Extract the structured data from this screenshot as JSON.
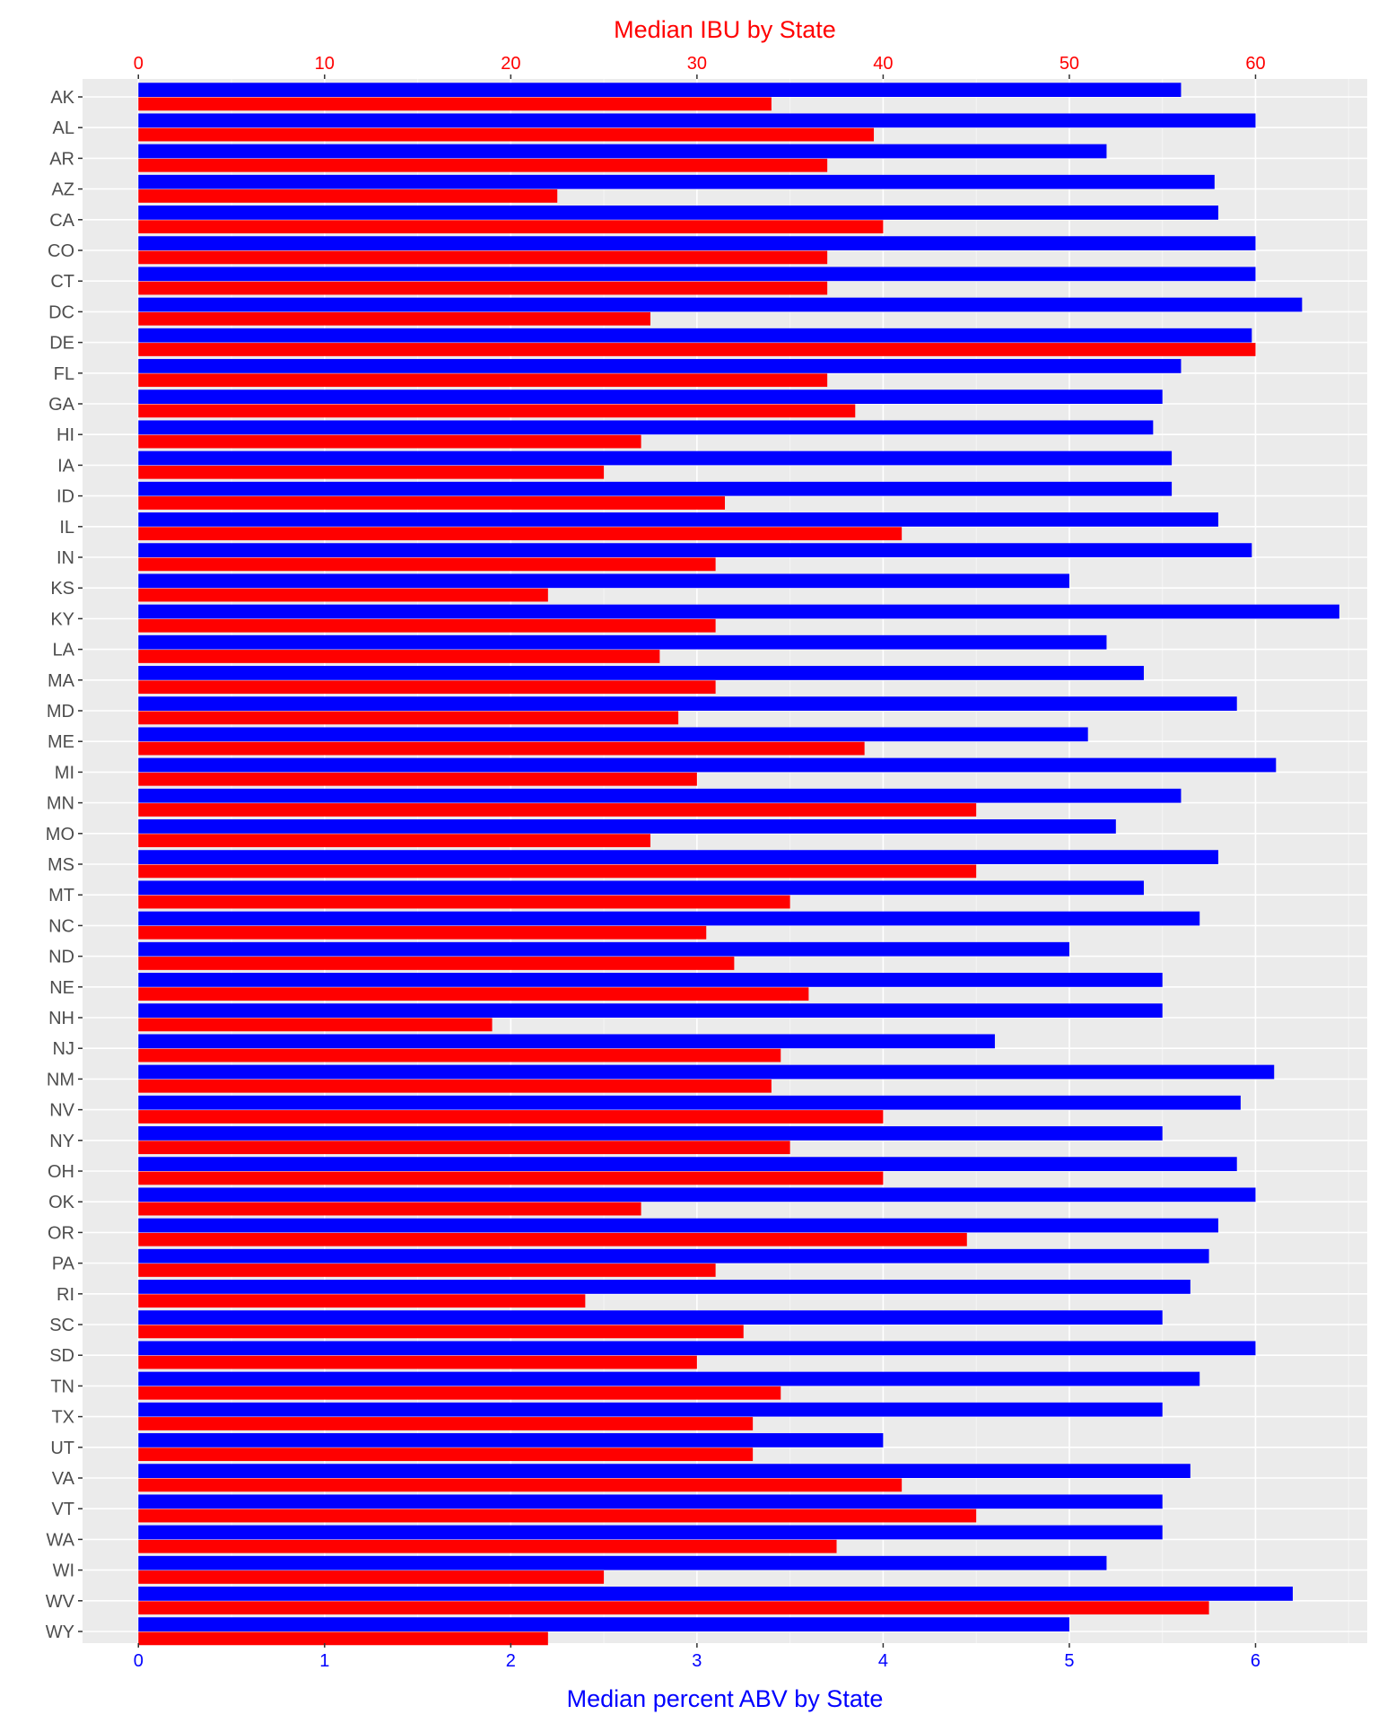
{
  "colors": {
    "abv": "#0000ff",
    "ibu": "#ff0000",
    "panel": "#ebebeb",
    "grid_major": "#ffffff",
    "grid_minor": "#f5f5f5",
    "axis_text": "#4d4d4d",
    "tick": "#333333"
  },
  "chart_data": {
    "type": "bar",
    "orientation": "horizontal",
    "grid": true,
    "legend": "none",
    "title": "Median IBU by State",
    "xlabel": "Median percent ABV by State",
    "categories": [
      "AK",
      "AL",
      "AR",
      "AZ",
      "CA",
      "CO",
      "CT",
      "DC",
      "DE",
      "FL",
      "GA",
      "HI",
      "IA",
      "ID",
      "IL",
      "IN",
      "KS",
      "KY",
      "LA",
      "MA",
      "MD",
      "ME",
      "MI",
      "MN",
      "MO",
      "MS",
      "MT",
      "NC",
      "ND",
      "NE",
      "NH",
      "NJ",
      "NM",
      "NV",
      "NY",
      "OH",
      "OK",
      "OR",
      "PA",
      "RI",
      "SC",
      "SD",
      "TN",
      "TX",
      "UT",
      "VA",
      "VT",
      "WA",
      "WI",
      "WV",
      "WY"
    ],
    "x_bottom": {
      "label": "Median percent ABV by State",
      "ticks": [
        "0",
        "1",
        "2",
        "3",
        "4",
        "5",
        "6"
      ],
      "range": [
        -0.3,
        6.6
      ]
    },
    "x_top": {
      "label": "Median IBU by State",
      "ticks": [
        "0",
        "10",
        "20",
        "30",
        "40",
        "50",
        "60"
      ],
      "range": [
        -3.0,
        66.0
      ]
    },
    "series": [
      {
        "axis": "bottom",
        "color": "#0000ff",
        "values": [
          5.6,
          6.0,
          5.2,
          5.78,
          5.8,
          6.0,
          6.0,
          6.25,
          5.98,
          5.6,
          5.5,
          5.45,
          5.55,
          5.55,
          5.8,
          5.98,
          5.0,
          6.45,
          5.2,
          5.4,
          5.9,
          5.1,
          6.11,
          5.6,
          5.25,
          5.8,
          5.4,
          5.7,
          5.0,
          5.5,
          5.5,
          4.6,
          6.1,
          5.92,
          5.5,
          5.9,
          6.0,
          5.8,
          5.75,
          5.65,
          5.5,
          6.0,
          5.7,
          5.5,
          4.0,
          5.65,
          5.5,
          5.5,
          5.2,
          6.2,
          5.0
        ]
      },
      {
        "axis": "top",
        "color": "#ff0000",
        "values": [
          34,
          39.5,
          37,
          22.5,
          40,
          37,
          37,
          27.5,
          60,
          37,
          38.5,
          27,
          25,
          31.5,
          41,
          31,
          22,
          31,
          28,
          31,
          29,
          39,
          30,
          45,
          27.5,
          45,
          35,
          30.5,
          32,
          36,
          19,
          34.5,
          34,
          40,
          35,
          40,
          27,
          44.5,
          31,
          24,
          32.5,
          30,
          34.5,
          33,
          33,
          41,
          45,
          37.5,
          25,
          57.5,
          22
        ]
      }
    ]
  }
}
